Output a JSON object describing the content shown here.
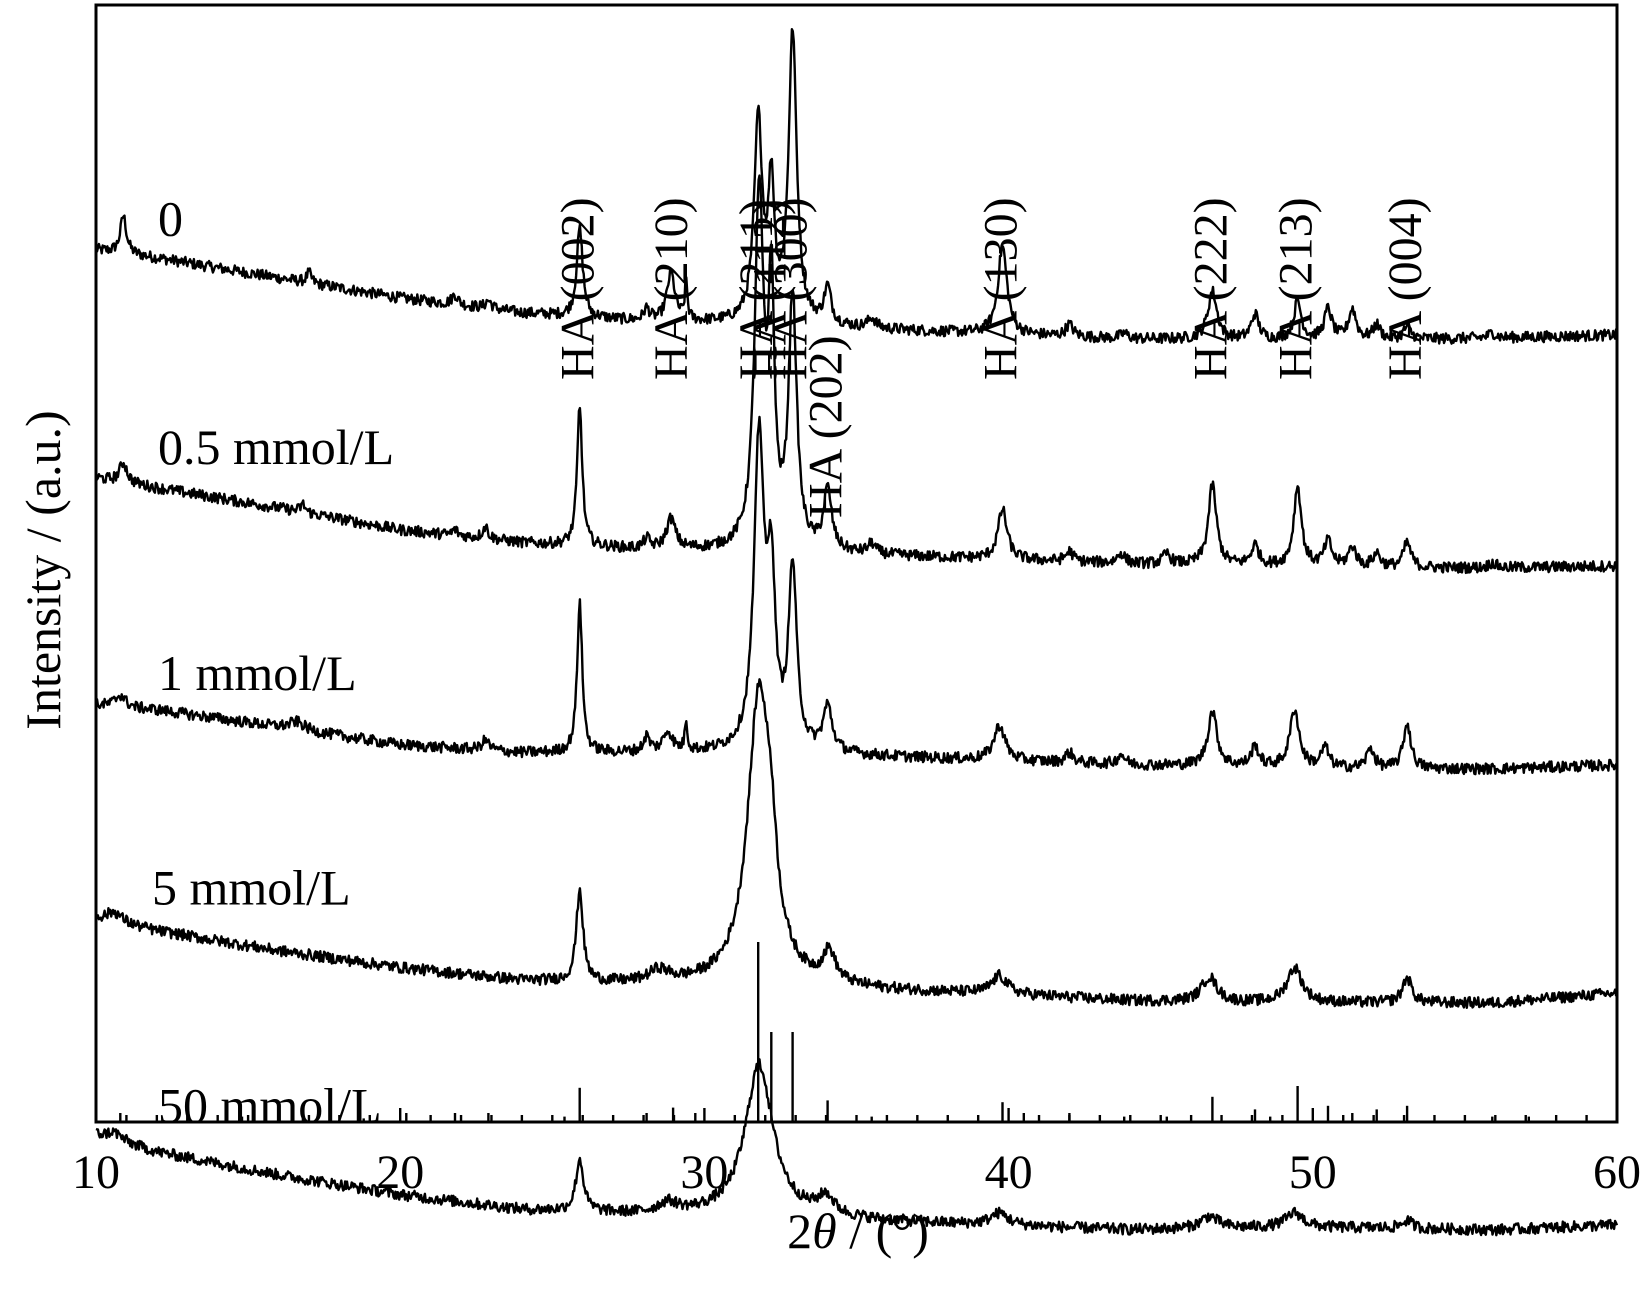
{
  "chart_data": {
    "type": "line",
    "title": "",
    "xlabel_prefix": "2",
    "xlabel_symbol": "θ",
    "xlabel_suffix": " / (°)",
    "ylabel": "Intensity / (a.u.)",
    "xlim": [
      10,
      60
    ],
    "xticks": [
      10,
      20,
      30,
      40,
      50,
      60
    ],
    "xtick_labels": [
      "10",
      "20",
      "30",
      "40",
      "50",
      "60"
    ],
    "y_ticks_shown": false,
    "grid": false,
    "line_color": "#000000",
    "series": [
      {
        "name": "0",
        "baseline": [
          [
            10,
            270
          ],
          [
            12,
            262
          ],
          [
            16,
            242
          ],
          [
            20,
            222
          ],
          [
            24,
            207
          ],
          [
            28,
            198
          ],
          [
            32,
            196
          ],
          [
            36,
            190
          ],
          [
            40,
            185
          ],
          [
            44,
            181
          ],
          [
            48,
            180
          ],
          [
            52,
            180
          ],
          [
            56,
            182
          ],
          [
            60,
            185
          ]
        ],
        "peaks": [
          [
            10.9,
            38,
            0.12
          ],
          [
            17,
            10,
            0.1
          ],
          [
            21.8,
            10,
            0.12
          ],
          [
            22.9,
            8,
            0.12
          ],
          [
            25.9,
            88,
            0.12
          ],
          [
            28.1,
            12,
            0.12
          ],
          [
            28.9,
            48,
            0.16
          ],
          [
            29.4,
            38,
            0.05
          ],
          [
            31.77,
            200,
            0.16
          ],
          [
            32.2,
            130,
            0.12
          ],
          [
            32.9,
            290,
            0.16
          ],
          [
            34.05,
            36,
            0.14
          ],
          [
            35.5,
            10,
            0.15
          ],
          [
            39.8,
            88,
            0.18
          ],
          [
            42,
            12,
            0.15
          ],
          [
            43.8,
            5,
            0.15
          ],
          [
            46.7,
            48,
            0.18
          ],
          [
            48.1,
            25,
            0.15
          ],
          [
            49.5,
            38,
            0.15
          ],
          [
            50.5,
            30,
            0.15
          ],
          [
            51.3,
            30,
            0.15
          ],
          [
            52.1,
            14,
            0.15
          ],
          [
            53.1,
            12,
            0.15
          ],
          [
            55.9,
            5,
            0.15
          ]
        ]
      },
      {
        "name": "0.5 mmol/L",
        "baseline": [
          [
            10,
            160
          ],
          [
            12,
            150
          ],
          [
            16,
            130
          ],
          [
            20,
            108
          ],
          [
            24,
            95
          ],
          [
            28,
            88
          ],
          [
            32,
            86
          ],
          [
            36,
            82
          ],
          [
            40,
            78
          ],
          [
            44,
            74
          ],
          [
            48,
            72
          ],
          [
            52,
            70
          ],
          [
            56,
            70
          ],
          [
            60,
            72
          ]
        ],
        "peaks": [
          [
            10.9,
            20,
            0.15
          ],
          [
            16.8,
            8,
            0.1
          ],
          [
            21.8,
            6,
            0.1
          ],
          [
            22.8,
            12,
            0.12
          ],
          [
            25.9,
            140,
            0.1
          ],
          [
            28.1,
            10,
            0.12
          ],
          [
            28.9,
            30,
            0.18
          ],
          [
            31.8,
            350,
            0.18
          ],
          [
            32.2,
            240,
            0.12
          ],
          [
            32.9,
            250,
            0.16
          ],
          [
            34.05,
            60,
            0.16
          ],
          [
            35.5,
            10,
            0.15
          ],
          [
            39.8,
            50,
            0.18
          ],
          [
            42,
            10,
            0.15
          ],
          [
            43.7,
            10,
            0.15
          ],
          [
            45.2,
            10,
            0.15
          ],
          [
            46.7,
            80,
            0.16
          ],
          [
            48.1,
            20,
            0.15
          ],
          [
            49.5,
            80,
            0.15
          ],
          [
            50.5,
            25,
            0.15
          ],
          [
            51.3,
            20,
            0.15
          ],
          [
            52.1,
            14,
            0.15
          ],
          [
            53.1,
            25,
            0.15
          ],
          [
            55.9,
            5,
            0.15
          ]
        ]
      },
      {
        "name": "1 mmol/L",
        "baseline": [
          [
            10,
            50
          ],
          [
            12,
            45
          ],
          [
            16,
            28
          ],
          [
            20,
            10
          ],
          [
            24,
            2
          ],
          [
            28,
            2
          ],
          [
            32,
            2
          ],
          [
            36,
            -2
          ],
          [
            40,
            -6
          ],
          [
            44,
            -10
          ],
          [
            48,
            -12
          ],
          [
            52,
            -14
          ],
          [
            56,
            -14
          ],
          [
            60,
            -10
          ]
        ],
        "peaks": [
          [
            10.8,
            12,
            0.2
          ],
          [
            16.6,
            8,
            0.3
          ],
          [
            22.8,
            10,
            0.15
          ],
          [
            25.9,
            150,
            0.1
          ],
          [
            28.1,
            15,
            0.12
          ],
          [
            28.8,
            20,
            0.18
          ],
          [
            29.4,
            30,
            0.05
          ],
          [
            31.8,
            310,
            0.2
          ],
          [
            32.2,
            160,
            0.15
          ],
          [
            32.9,
            180,
            0.16
          ],
          [
            34.05,
            45,
            0.18
          ],
          [
            39.7,
            35,
            0.22
          ],
          [
            42,
            10,
            0.15
          ],
          [
            43.7,
            10,
            0.15
          ],
          [
            46.7,
            55,
            0.18
          ],
          [
            48.1,
            20,
            0.15
          ],
          [
            49.4,
            58,
            0.18
          ],
          [
            50.4,
            20,
            0.15
          ],
          [
            51.9,
            20,
            0.15
          ],
          [
            53.1,
            45,
            0.15
          ]
        ]
      },
      {
        "name": "5 mmol/L",
        "baseline": [
          [
            10,
            -45
          ],
          [
            12,
            -58
          ],
          [
            16,
            -78
          ],
          [
            20,
            -95
          ],
          [
            24,
            -108
          ],
          [
            28,
            -112
          ],
          [
            32,
            -112
          ],
          [
            36,
            -118
          ],
          [
            40,
            -122
          ],
          [
            44,
            -128
          ],
          [
            48,
            -130
          ],
          [
            52,
            -130
          ],
          [
            56,
            -130
          ],
          [
            60,
            -120
          ]
        ],
        "peaks": [
          [
            10.6,
            10,
            0.3
          ],
          [
            25.9,
            92,
            0.13
          ],
          [
            28.5,
            12,
            0.4
          ],
          [
            31.8,
            290,
            0.45
          ],
          [
            32.2,
            60,
            0.2
          ],
          [
            34.1,
            30,
            0.25
          ],
          [
            39.7,
            18,
            0.3
          ],
          [
            46.6,
            25,
            0.3
          ],
          [
            49.4,
            35,
            0.3
          ],
          [
            53.1,
            25,
            0.18
          ]
        ]
      },
      {
        "name": "50 mmol/L",
        "baseline": [
          [
            10,
            -145
          ],
          [
            12,
            -162
          ],
          [
            16,
            -185
          ],
          [
            20,
            -205
          ],
          [
            24,
            -220
          ],
          [
            28,
            -225
          ],
          [
            32,
            -225
          ],
          [
            36,
            -232
          ],
          [
            40,
            -236
          ],
          [
            44,
            -240
          ],
          [
            48,
            -238
          ],
          [
            52,
            -238
          ],
          [
            56,
            -240
          ],
          [
            60,
            -235
          ]
        ],
        "peaks": [
          [
            10.6,
            8,
            0.3
          ],
          [
            25.9,
            52,
            0.15
          ],
          [
            28.8,
            10,
            0.4
          ],
          [
            31.8,
            150,
            0.55
          ],
          [
            34,
            18,
            0.3
          ],
          [
            39.7,
            12,
            0.35
          ],
          [
            46.6,
            12,
            0.35
          ],
          [
            49.4,
            15,
            0.35
          ],
          [
            53.1,
            8,
            0.2
          ]
        ]
      }
    ],
    "reference_pattern": {
      "positions": [
        10.8,
        14.8,
        16.8,
        18.8,
        20.2,
        21.8,
        22.9,
        25.4,
        25.9,
        28.1,
        28.97,
        29.7,
        31.77,
        32.2,
        32.9,
        34.05,
        35.5,
        39.8,
        40.5,
        42.0,
        43.8,
        45.2,
        46.7,
        48.1,
        48.6,
        49.5,
        50.5,
        51.3,
        52.1,
        53.1,
        55.9,
        57.1
      ],
      "intensities": [
        5,
        3,
        3,
        2,
        5,
        5,
        5,
        3,
        19,
        5,
        8,
        5,
        100,
        50,
        50,
        12,
        3,
        11,
        5,
        5,
        3,
        3,
        14,
        7,
        3,
        20,
        9,
        5,
        7,
        9,
        3,
        3
      ]
    },
    "peak_labels": [
      {
        "text": "HA (002)",
        "x": 25.9
      },
      {
        "text": "HA (210)",
        "x": 28.97
      },
      {
        "text": "HA (211)",
        "x": 31.77
      },
      {
        "text": "HA (112)",
        "x": 32.2
      },
      {
        "text": "HA (300)",
        "x": 32.9
      },
      {
        "text": "HA (202)",
        "x": 34.05
      },
      {
        "text": "HA (130)",
        "x": 39.8
      },
      {
        "text": "HA (222)",
        "x": 46.7
      },
      {
        "text": "HA (213)",
        "x": 49.5
      },
      {
        "text": "HA (004)",
        "x": 53.1
      }
    ]
  }
}
